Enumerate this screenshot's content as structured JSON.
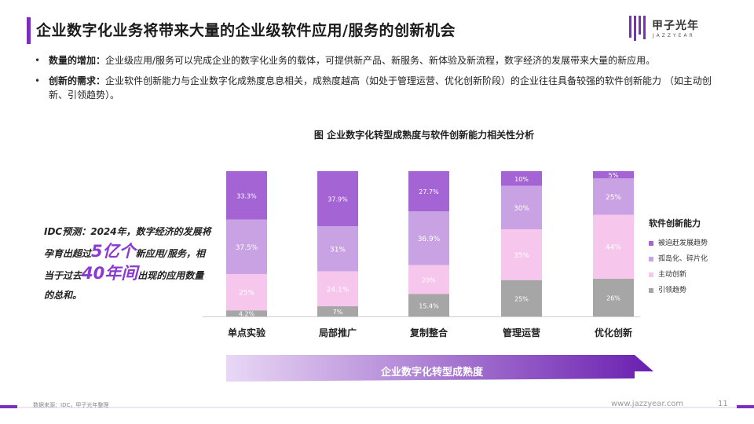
{
  "page": {
    "title": "企业数字化业务将带来大量的企业级软件应用/服务的创新机会",
    "logo_cn": "甲子光年",
    "logo_en": "JAZZYEAR",
    "website": "www.jazzyear.com",
    "page_number": "11",
    "source": "数据来源：IDC，甲子光年整理",
    "accent_color": "#7a2fbf"
  },
  "bullets": [
    {
      "bold": "数量的增加：",
      "text": "企业级应用/服务可以完成企业的数字化业务的载体，可提供新产品、新服务、新体验及新流程，数字经济的发展带来大量的新应用。"
    },
    {
      "bold": "创新的需求：",
      "text": "企业软件创新能力与企业数字化成熟度息息相关，成熟度越高（如处于管理运营、优化创新阶段）的企业往往具备较强的软件创新能力 （如主动创新、引领趋势）。"
    }
  ],
  "callout": {
    "part1": "IDC预测：2024年，数字经济的发展将孕育出超过",
    "big1": "5亿个",
    "part2": "新应用/服务，相当于过去",
    "big2": "40年间",
    "part3": "出现的应用数量的总和。"
  },
  "arrow_label": "企业数字化转型成熟度",
  "chart_data": {
    "type": "bar",
    "stacked": true,
    "title": "图 企业数字化转型成熟度与软件创新能力相关性分析",
    "legend_title": "软件创新能力",
    "legend_position": "right",
    "categories": [
      "单点实验",
      "局部推广",
      "复制整合",
      "管理运营",
      "优化创新"
    ],
    "ylim": [
      0,
      100
    ],
    "series": [
      {
        "name": "引领趋势",
        "color": "#a6a6a6",
        "values": [
          4.2,
          7,
          15.4,
          25,
          26
        ],
        "labels": [
          "4.2%",
          "7%",
          "15.4%",
          "25%",
          "26%"
        ]
      },
      {
        "name": "主动创新",
        "color": "#f7c6ec",
        "values": [
          25,
          24.1,
          20,
          35,
          44
        ],
        "labels": [
          "25%",
          "24.1%",
          "20%",
          "35%",
          "44%"
        ]
      },
      {
        "name": "孤岛化、碎片化",
        "color": "#c8a2e3",
        "values": [
          37.5,
          31,
          36.9,
          30,
          25
        ],
        "labels": [
          "37.5%",
          "31%",
          "36.9%",
          "30%",
          "25%"
        ]
      },
      {
        "name": "被迫赶发展趋势",
        "color": "#a464d4",
        "values": [
          33.3,
          37.9,
          27.7,
          10,
          5
        ],
        "labels": [
          "33.3%",
          "37.9%",
          "27.7%",
          "10%",
          "5%"
        ]
      }
    ]
  }
}
